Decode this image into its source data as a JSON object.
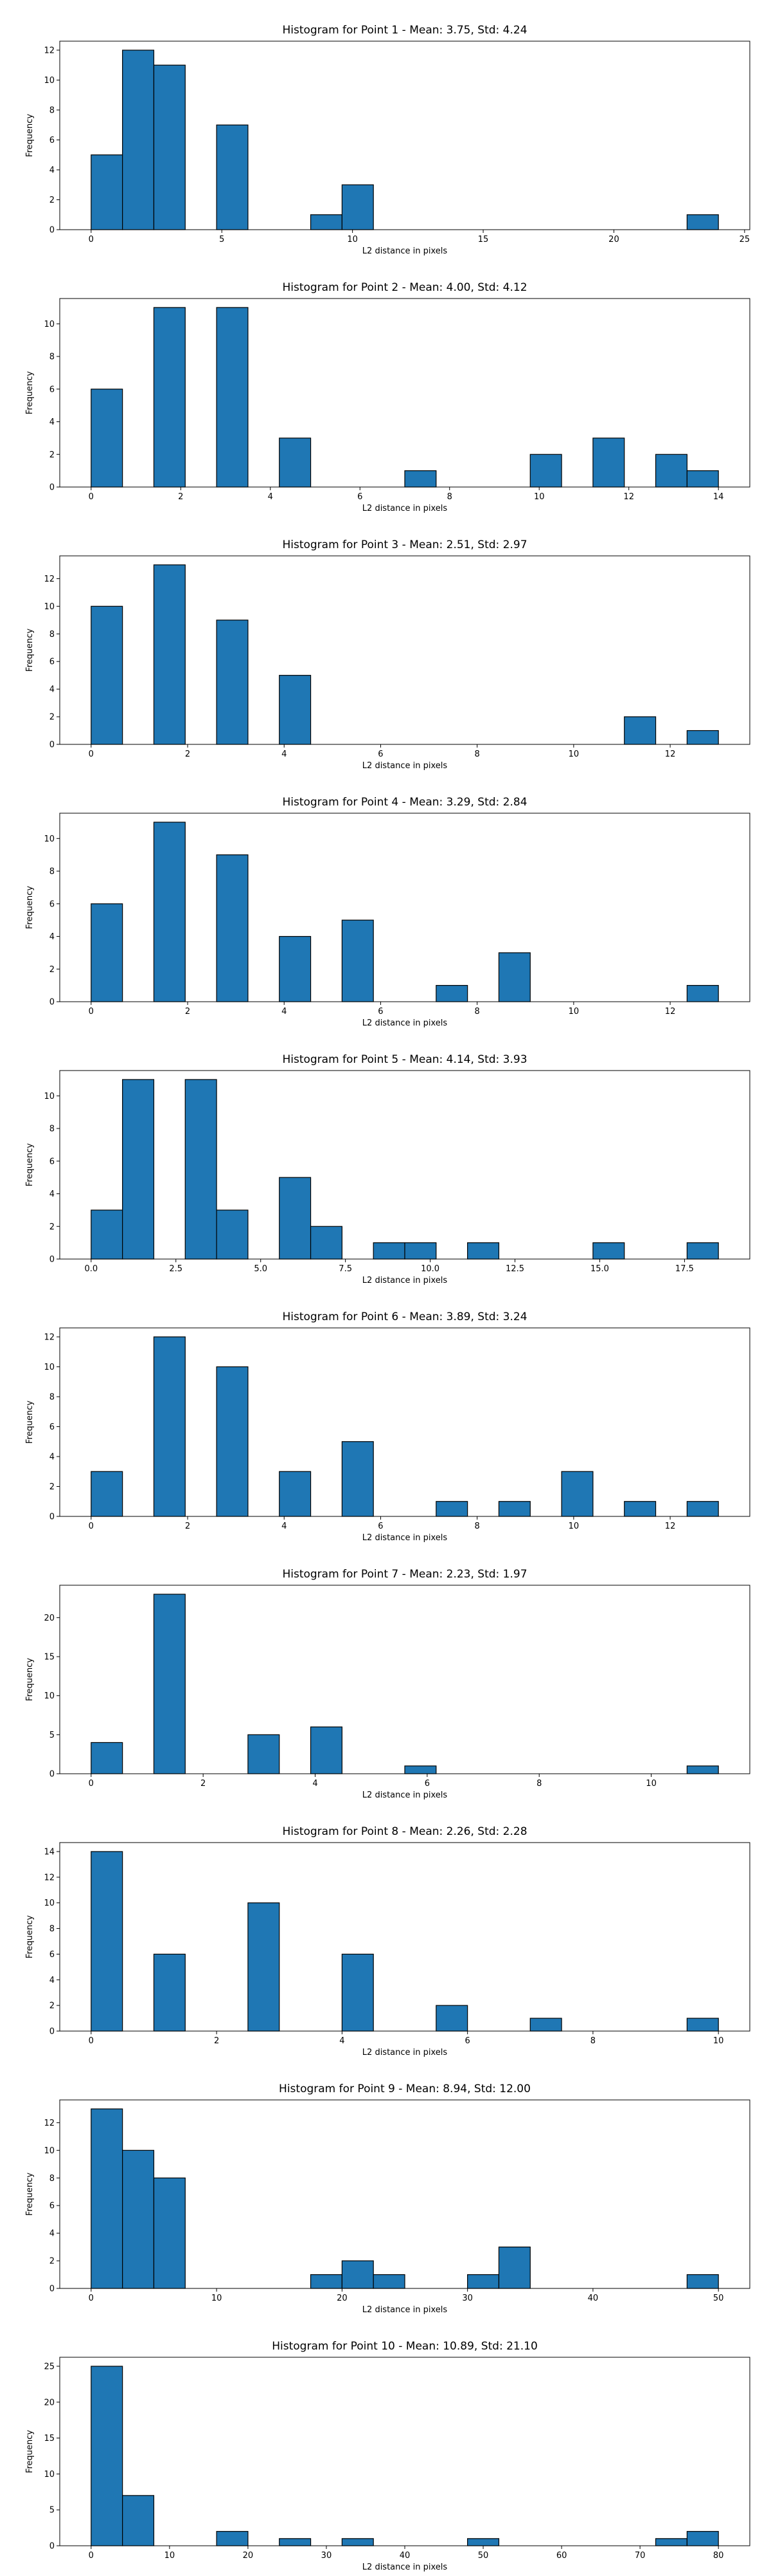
{
  "chart_data": [
    {
      "type": "bar",
      "title": "Histogram for Point 1 - Mean: 3.75, Std: 4.24",
      "xlabel": "L2 distance in pixels",
      "ylabel": "Frequency",
      "xlim": [
        -1.2,
        25.2
      ],
      "ylim": [
        0,
        12.6
      ],
      "xticks": [
        0,
        5,
        10,
        15,
        20,
        25
      ],
      "yticks": [
        0,
        2,
        4,
        6,
        8,
        10,
        12
      ],
      "bins": [
        {
          "x0": 0.0,
          "x1": 1.2,
          "value": 5
        },
        {
          "x0": 1.2,
          "x1": 2.4,
          "value": 12
        },
        {
          "x0": 2.4,
          "x1": 3.6,
          "value": 11
        },
        {
          "x0": 4.8,
          "x1": 6.0,
          "value": 7
        },
        {
          "x0": 8.4,
          "x1": 9.6,
          "value": 1
        },
        {
          "x0": 9.6,
          "x1": 10.8,
          "value": 3
        },
        {
          "x0": 22.8,
          "x1": 24.0,
          "value": 1
        }
      ]
    },
    {
      "type": "bar",
      "title": "Histogram for Point 2 - Mean: 4.00, Std: 4.12",
      "xlabel": "L2 distance in pixels",
      "ylabel": "Frequency",
      "xlim": [
        -0.7,
        14.7
      ],
      "ylim": [
        0,
        11.55
      ],
      "xticks": [
        0,
        2,
        4,
        6,
        8,
        10,
        12,
        14
      ],
      "yticks": [
        0,
        2,
        4,
        6,
        8,
        10
      ],
      "bins": [
        {
          "x0": 0.0,
          "x1": 0.7,
          "value": 6
        },
        {
          "x0": 1.4,
          "x1": 2.1,
          "value": 11
        },
        {
          "x0": 2.8,
          "x1": 3.5,
          "value": 11
        },
        {
          "x0": 4.2,
          "x1": 4.9,
          "value": 3
        },
        {
          "x0": 7.0,
          "x1": 7.7,
          "value": 1
        },
        {
          "x0": 9.8,
          "x1": 10.5,
          "value": 2
        },
        {
          "x0": 11.2,
          "x1": 11.9,
          "value": 3
        },
        {
          "x0": 12.6,
          "x1": 13.3,
          "value": 2
        },
        {
          "x0": 13.3,
          "x1": 14.0,
          "value": 1
        }
      ]
    },
    {
      "type": "bar",
      "title": "Histogram for Point 3 - Mean: 2.51, Std: 2.97",
      "xlabel": "L2 distance in pixels",
      "ylabel": "Frequency",
      "xlim": [
        -0.65,
        13.65
      ],
      "ylim": [
        0,
        13.65
      ],
      "xticks": [
        0,
        2,
        4,
        6,
        8,
        10,
        12
      ],
      "yticks": [
        0,
        2,
        4,
        6,
        8,
        10,
        12
      ],
      "bins": [
        {
          "x0": 0.0,
          "x1": 0.65,
          "value": 10
        },
        {
          "x0": 1.3,
          "x1": 1.95,
          "value": 13
        },
        {
          "x0": 2.6,
          "x1": 3.25,
          "value": 9
        },
        {
          "x0": 3.9,
          "x1": 4.55,
          "value": 5
        },
        {
          "x0": 11.05,
          "x1": 11.7,
          "value": 2
        },
        {
          "x0": 12.35,
          "x1": 13.0,
          "value": 1
        }
      ]
    },
    {
      "type": "bar",
      "title": "Histogram for Point 4 - Mean: 3.29, Std: 2.84",
      "xlabel": "L2 distance in pixels",
      "ylabel": "Frequency",
      "xlim": [
        -0.65,
        13.65
      ],
      "ylim": [
        0,
        11.55
      ],
      "xticks": [
        0,
        2,
        4,
        6,
        8,
        10,
        12
      ],
      "yticks": [
        0,
        2,
        4,
        6,
        8,
        10
      ],
      "bins": [
        {
          "x0": 0.0,
          "x1": 0.65,
          "value": 6
        },
        {
          "x0": 1.3,
          "x1": 1.95,
          "value": 11
        },
        {
          "x0": 2.6,
          "x1": 3.25,
          "value": 9
        },
        {
          "x0": 3.9,
          "x1": 4.55,
          "value": 4
        },
        {
          "x0": 5.2,
          "x1": 5.85,
          "value": 5
        },
        {
          "x0": 7.15,
          "x1": 7.8,
          "value": 1
        },
        {
          "x0": 8.45,
          "x1": 9.1,
          "value": 3
        },
        {
          "x0": 12.35,
          "x1": 13.0,
          "value": 1
        }
      ]
    },
    {
      "type": "bar",
      "title": "Histogram for Point 5 - Mean: 4.14, Std: 3.93",
      "xlabel": "L2 distance in pixels",
      "ylabel": "Frequency",
      "xlim": [
        -0.925,
        19.425
      ],
      "ylim": [
        0,
        11.55
      ],
      "xticks": [
        0.0,
        2.5,
        5.0,
        7.5,
        10.0,
        12.5,
        15.0,
        17.5
      ],
      "xtick_labels": [
        "0.0",
        "2.5",
        "5.0",
        "7.5",
        "10.0",
        "12.5",
        "15.0",
        "17.5"
      ],
      "yticks": [
        0,
        2,
        4,
        6,
        8,
        10
      ],
      "bins": [
        {
          "x0": 0.0,
          "x1": 0.925,
          "value": 3
        },
        {
          "x0": 0.925,
          "x1": 1.85,
          "value": 11
        },
        {
          "x0": 2.775,
          "x1": 3.7,
          "value": 11
        },
        {
          "x0": 3.7,
          "x1": 4.625,
          "value": 3
        },
        {
          "x0": 5.55,
          "x1": 6.475,
          "value": 5
        },
        {
          "x0": 6.475,
          "x1": 7.4,
          "value": 2
        },
        {
          "x0": 8.325,
          "x1": 9.25,
          "value": 1
        },
        {
          "x0": 9.25,
          "x1": 10.175,
          "value": 1
        },
        {
          "x0": 11.1,
          "x1": 12.025,
          "value": 1
        },
        {
          "x0": 14.8,
          "x1": 15.725,
          "value": 1
        },
        {
          "x0": 17.575,
          "x1": 18.5,
          "value": 1
        }
      ]
    },
    {
      "type": "bar",
      "title": "Histogram for Point 6 - Mean: 3.89, Std: 3.24",
      "xlabel": "L2 distance in pixels",
      "ylabel": "Frequency",
      "xlim": [
        -0.65,
        13.65
      ],
      "ylim": [
        0,
        12.6
      ],
      "xticks": [
        0,
        2,
        4,
        6,
        8,
        10,
        12
      ],
      "yticks": [
        0,
        2,
        4,
        6,
        8,
        10,
        12
      ],
      "bins": [
        {
          "x0": 0.0,
          "x1": 0.65,
          "value": 3
        },
        {
          "x0": 1.3,
          "x1": 1.95,
          "value": 12
        },
        {
          "x0": 2.6,
          "x1": 3.25,
          "value": 10
        },
        {
          "x0": 3.9,
          "x1": 4.55,
          "value": 3
        },
        {
          "x0": 5.2,
          "x1": 5.85,
          "value": 5
        },
        {
          "x0": 7.15,
          "x1": 7.8,
          "value": 1
        },
        {
          "x0": 8.45,
          "x1": 9.1,
          "value": 1
        },
        {
          "x0": 9.75,
          "x1": 10.4,
          "value": 3
        },
        {
          "x0": 11.05,
          "x1": 11.7,
          "value": 1
        },
        {
          "x0": 12.35,
          "x1": 13.0,
          "value": 1
        }
      ]
    },
    {
      "type": "bar",
      "title": "Histogram for Point 7 - Mean: 2.23, Std: 1.97",
      "xlabel": "L2 distance in pixels",
      "ylabel": "Frequency",
      "xlim": [
        -0.56,
        11.76
      ],
      "ylim": [
        0,
        24.15
      ],
      "xticks": [
        0,
        2,
        4,
        6,
        8,
        10
      ],
      "yticks": [
        0,
        5,
        10,
        15,
        20
      ],
      "bins": [
        {
          "x0": 0.0,
          "x1": 0.56,
          "value": 4
        },
        {
          "x0": 1.12,
          "x1": 1.68,
          "value": 23
        },
        {
          "x0": 2.8,
          "x1": 3.36,
          "value": 5
        },
        {
          "x0": 3.92,
          "x1": 4.48,
          "value": 6
        },
        {
          "x0": 5.6,
          "x1": 6.16,
          "value": 1
        },
        {
          "x0": 10.64,
          "x1": 11.2,
          "value": 1
        }
      ]
    },
    {
      "type": "bar",
      "title": "Histogram for Point 8 - Mean: 2.26, Std: 2.28",
      "xlabel": "L2 distance in pixels",
      "ylabel": "Frequency",
      "xlim": [
        -0.5,
        10.5
      ],
      "ylim": [
        0,
        14.7
      ],
      "xticks": [
        0,
        2,
        4,
        6,
        8,
        10
      ],
      "yticks": [
        0,
        2,
        4,
        6,
        8,
        10,
        12,
        14
      ],
      "bins": [
        {
          "x0": 0.0,
          "x1": 0.5,
          "value": 14
        },
        {
          "x0": 1.0,
          "x1": 1.5,
          "value": 6
        },
        {
          "x0": 2.5,
          "x1": 3.0,
          "value": 10
        },
        {
          "x0": 4.0,
          "x1": 4.5,
          "value": 6
        },
        {
          "x0": 5.5,
          "x1": 6.0,
          "value": 2
        },
        {
          "x0": 7.0,
          "x1": 7.5,
          "value": 1
        },
        {
          "x0": 9.5,
          "x1": 10.0,
          "value": 1
        }
      ]
    },
    {
      "type": "bar",
      "title": "Histogram for Point 9 - Mean: 8.94, Std: 12.00",
      "xlabel": "L2 distance in pixels",
      "ylabel": "Frequency",
      "xlim": [
        -2.5,
        52.5
      ],
      "ylim": [
        0,
        13.65
      ],
      "xticks": [
        0,
        10,
        20,
        30,
        40,
        50
      ],
      "yticks": [
        0,
        2,
        4,
        6,
        8,
        10,
        12
      ],
      "bins": [
        {
          "x0": 0.0,
          "x1": 2.5,
          "value": 13
        },
        {
          "x0": 2.5,
          "x1": 5.0,
          "value": 10
        },
        {
          "x0": 5.0,
          "x1": 7.5,
          "value": 8
        },
        {
          "x0": 17.5,
          "x1": 20.0,
          "value": 1
        },
        {
          "x0": 20.0,
          "x1": 22.5,
          "value": 2
        },
        {
          "x0": 22.5,
          "x1": 25.0,
          "value": 1
        },
        {
          "x0": 30.0,
          "x1": 32.5,
          "value": 1
        },
        {
          "x0": 32.5,
          "x1": 35.0,
          "value": 3
        },
        {
          "x0": 47.5,
          "x1": 50.0,
          "value": 1
        }
      ]
    },
    {
      "type": "bar",
      "title": "Histogram for Point 10 - Mean: 10.89, Std: 21.10",
      "xlabel": "L2 distance in pixels",
      "ylabel": "Frequency",
      "xlim": [
        -4.0,
        84.0
      ],
      "ylim": [
        0,
        26.25
      ],
      "xticks": [
        0,
        10,
        20,
        30,
        40,
        50,
        60,
        70,
        80
      ],
      "yticks": [
        0,
        5,
        10,
        15,
        20,
        25
      ],
      "bins": [
        {
          "x0": 0.0,
          "x1": 4.0,
          "value": 25
        },
        {
          "x0": 4.0,
          "x1": 8.0,
          "value": 7
        },
        {
          "x0": 16.0,
          "x1": 20.0,
          "value": 2
        },
        {
          "x0": 24.0,
          "x1": 28.0,
          "value": 1
        },
        {
          "x0": 32.0,
          "x1": 36.0,
          "value": 1
        },
        {
          "x0": 48.0,
          "x1": 52.0,
          "value": 1
        },
        {
          "x0": 72.0,
          "x1": 76.0,
          "value": 1
        },
        {
          "x0": 76.0,
          "x1": 80.0,
          "value": 2
        }
      ]
    }
  ],
  "colors": {
    "bar_fill": "#1f77b4",
    "bar_edge": "#000000",
    "axes": "#000000",
    "text": "#000000",
    "background": "#ffffff"
  }
}
